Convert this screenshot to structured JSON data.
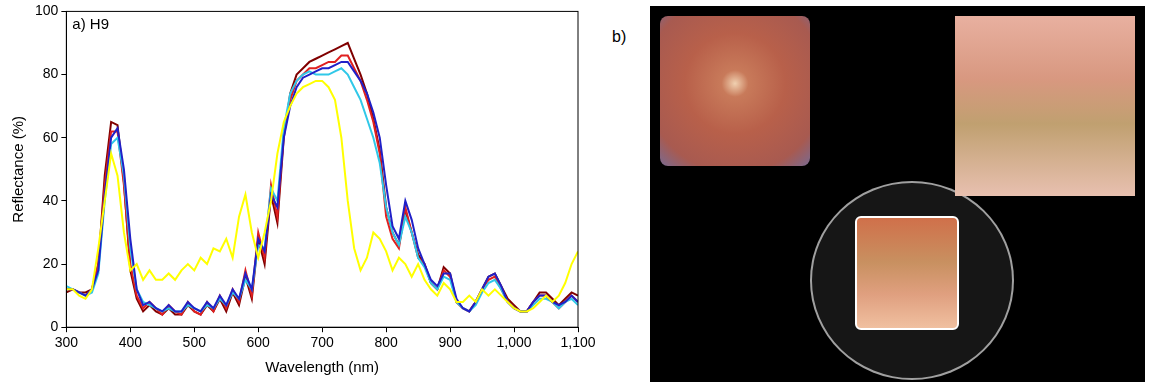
{
  "chart_data": {
    "type": "line",
    "annotation": "a) H9",
    "x_label": "Wavelength (nm)",
    "y_label": "Reflectance (%)",
    "xlim": [
      300,
      1100
    ],
    "xticks": [
      300,
      400,
      500,
      600,
      700,
      800,
      900,
      1000,
      1100
    ],
    "ylim": [
      0,
      100
    ],
    "yticks": [
      0,
      20,
      40,
      60,
      80,
      100
    ],
    "grid": false,
    "x": [
      300,
      310,
      320,
      330,
      340,
      350,
      360,
      370,
      380,
      390,
      400,
      410,
      420,
      430,
      440,
      450,
      460,
      470,
      480,
      490,
      500,
      510,
      520,
      530,
      540,
      550,
      560,
      570,
      580,
      590,
      600,
      610,
      620,
      630,
      640,
      650,
      660,
      670,
      680,
      690,
      700,
      710,
      720,
      730,
      740,
      750,
      760,
      770,
      780,
      790,
      800,
      810,
      820,
      830,
      840,
      850,
      860,
      870,
      880,
      890,
      900,
      910,
      920,
      930,
      940,
      950,
      960,
      970,
      980,
      990,
      1000,
      1010,
      1020,
      1030,
      1040,
      1050,
      1060,
      1070,
      1080,
      1090,
      1100
    ],
    "series": [
      {
        "color": "#ffff00",
        "values": [
          12,
          12,
          10,
          9,
          12,
          25,
          40,
          55,
          48,
          30,
          18,
          20,
          15,
          18,
          15,
          15,
          17,
          15,
          18,
          20,
          18,
          22,
          20,
          25,
          24,
          28,
          22,
          35,
          42,
          30,
          22,
          30,
          40,
          55,
          65,
          70,
          74,
          76,
          77,
          78,
          78,
          76,
          72,
          60,
          40,
          25,
          18,
          22,
          30,
          28,
          24,
          18,
          22,
          20,
          16,
          20,
          15,
          12,
          10,
          14,
          12,
          8,
          8,
          10,
          8,
          12,
          10,
          12,
          10,
          8,
          6,
          5,
          5,
          6,
          8,
          10,
          8,
          10,
          14,
          20,
          24
        ]
      },
      {
        "color": "#2020c8",
        "values": [
          12,
          12,
          11,
          10,
          12,
          18,
          42,
          60,
          63,
          50,
          28,
          12,
          7,
          8,
          6,
          5,
          7,
          5,
          5,
          8,
          6,
          5,
          8,
          6,
          10,
          7,
          12,
          9,
          17,
          12,
          28,
          24,
          42,
          38,
          60,
          70,
          76,
          79,
          80,
          81,
          82,
          82,
          83,
          84,
          84,
          81,
          78,
          74,
          68,
          60,
          45,
          32,
          28,
          40,
          34,
          25,
          20,
          15,
          13,
          17,
          17,
          9,
          6,
          5,
          8,
          12,
          16,
          17,
          13,
          8,
          6,
          5,
          5,
          8,
          10,
          10,
          8,
          7,
          8,
          10,
          8
        ]
      },
      {
        "color": "#30c8e8",
        "values": [
          13,
          12,
          11,
          10,
          11,
          17,
          40,
          58,
          60,
          48,
          25,
          12,
          8,
          7,
          6,
          5,
          6,
          5,
          5,
          7,
          6,
          5,
          7,
          6,
          9,
          7,
          11,
          9,
          15,
          12,
          26,
          25,
          44,
          40,
          63,
          74,
          78,
          80,
          81,
          80,
          80,
          80,
          81,
          82,
          80,
          76,
          72,
          66,
          60,
          52,
          38,
          30,
          26,
          35,
          30,
          22,
          19,
          14,
          12,
          16,
          15,
          8,
          6,
          5,
          7,
          11,
          14,
          15,
          12,
          8,
          6,
          5,
          5,
          7,
          9,
          9,
          8,
          6,
          8,
          9,
          7
        ]
      },
      {
        "color": "#e02020",
        "values": [
          12,
          12,
          11,
          10,
          12,
          20,
          45,
          62,
          62,
          45,
          20,
          10,
          6,
          8,
          6,
          4,
          7,
          5,
          4,
          8,
          5,
          4,
          8,
          5,
          10,
          6,
          12,
          8,
          18,
          10,
          30,
          22,
          45,
          35,
          62,
          72,
          78,
          80,
          82,
          82,
          83,
          84,
          84,
          86,
          86,
          82,
          78,
          72,
          65,
          55,
          35,
          28,
          25,
          38,
          30,
          22,
          20,
          14,
          12,
          18,
          16,
          8,
          6,
          5,
          8,
          12,
          15,
          16,
          12,
          8,
          6,
          5,
          5,
          8,
          10,
          10,
          8,
          6,
          8,
          10,
          8
        ]
      },
      {
        "color": "#800000",
        "values": [
          11,
          12,
          11,
          11,
          12,
          20,
          48,
          65,
          64,
          46,
          18,
          9,
          5,
          7,
          5,
          4,
          6,
          4,
          4,
          7,
          5,
          4,
          7,
          5,
          9,
          5,
          11,
          7,
          16,
          9,
          28,
          20,
          42,
          33,
          60,
          74,
          80,
          82,
          84,
          85,
          86,
          87,
          88,
          89,
          90,
          85,
          80,
          74,
          66,
          56,
          38,
          30,
          26,
          37,
          30,
          23,
          20,
          14,
          12,
          19,
          17,
          8,
          6,
          5,
          8,
          12,
          16,
          17,
          13,
          9,
          7,
          5,
          5,
          8,
          11,
          11,
          9,
          7,
          9,
          11,
          10
        ]
      }
    ]
  },
  "panel_b": {
    "label": "b)"
  }
}
